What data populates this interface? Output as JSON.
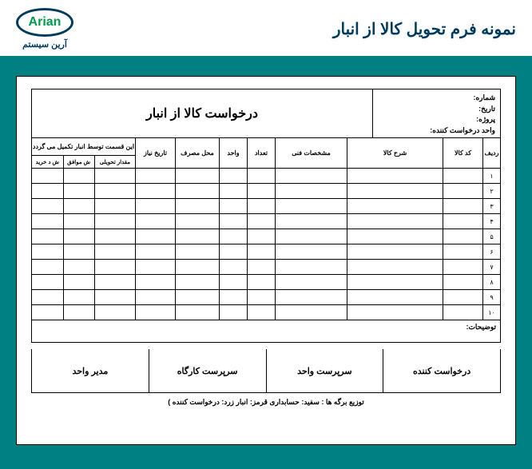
{
  "header": {
    "title": "نمونه فرم تحویل کالا از انبار",
    "logo_text": "Arian",
    "logo_sub": "آرین سیستم"
  },
  "form": {
    "meta_labels": {
      "number": "شماره:",
      "date": "تاریخ:",
      "project": "پروژه:",
      "unit": "واحد درخواست کننده:"
    },
    "form_title": "درخواست کالا از انبار",
    "columns": {
      "radif": "ردیف",
      "code": "کد کالا",
      "desc": "شرح کالا",
      "spec": "مشخصات فنی",
      "qty": "تعداد",
      "unit": "واحد",
      "place": "محل مصرف",
      "needdate": "تاریخ نیاز",
      "group_top": "این قسمت توسط انبار تکمیل می گردد",
      "sub1": "مقدار تحویلی",
      "sub2": "ش موافق",
      "sub3": "ش د خرید"
    },
    "rows": [
      "۱",
      "۲",
      "۳",
      "۴",
      "۵",
      "۶",
      "۷",
      "۸",
      "۹",
      "۱۰"
    ],
    "notes_label": "توضیحات:",
    "signatures": [
      "درخواست کننده",
      "سرپرست واحد",
      "سرپرست کارگاه",
      "مدیر واحد"
    ],
    "footer": "توزیع برگه ها :  سفید: حسابداری     قرمز: انبار     زرد: درخواست کننده )"
  },
  "style": {
    "brand_color": "#003a5d",
    "teal": "#008080",
    "green": "#009a4e"
  }
}
